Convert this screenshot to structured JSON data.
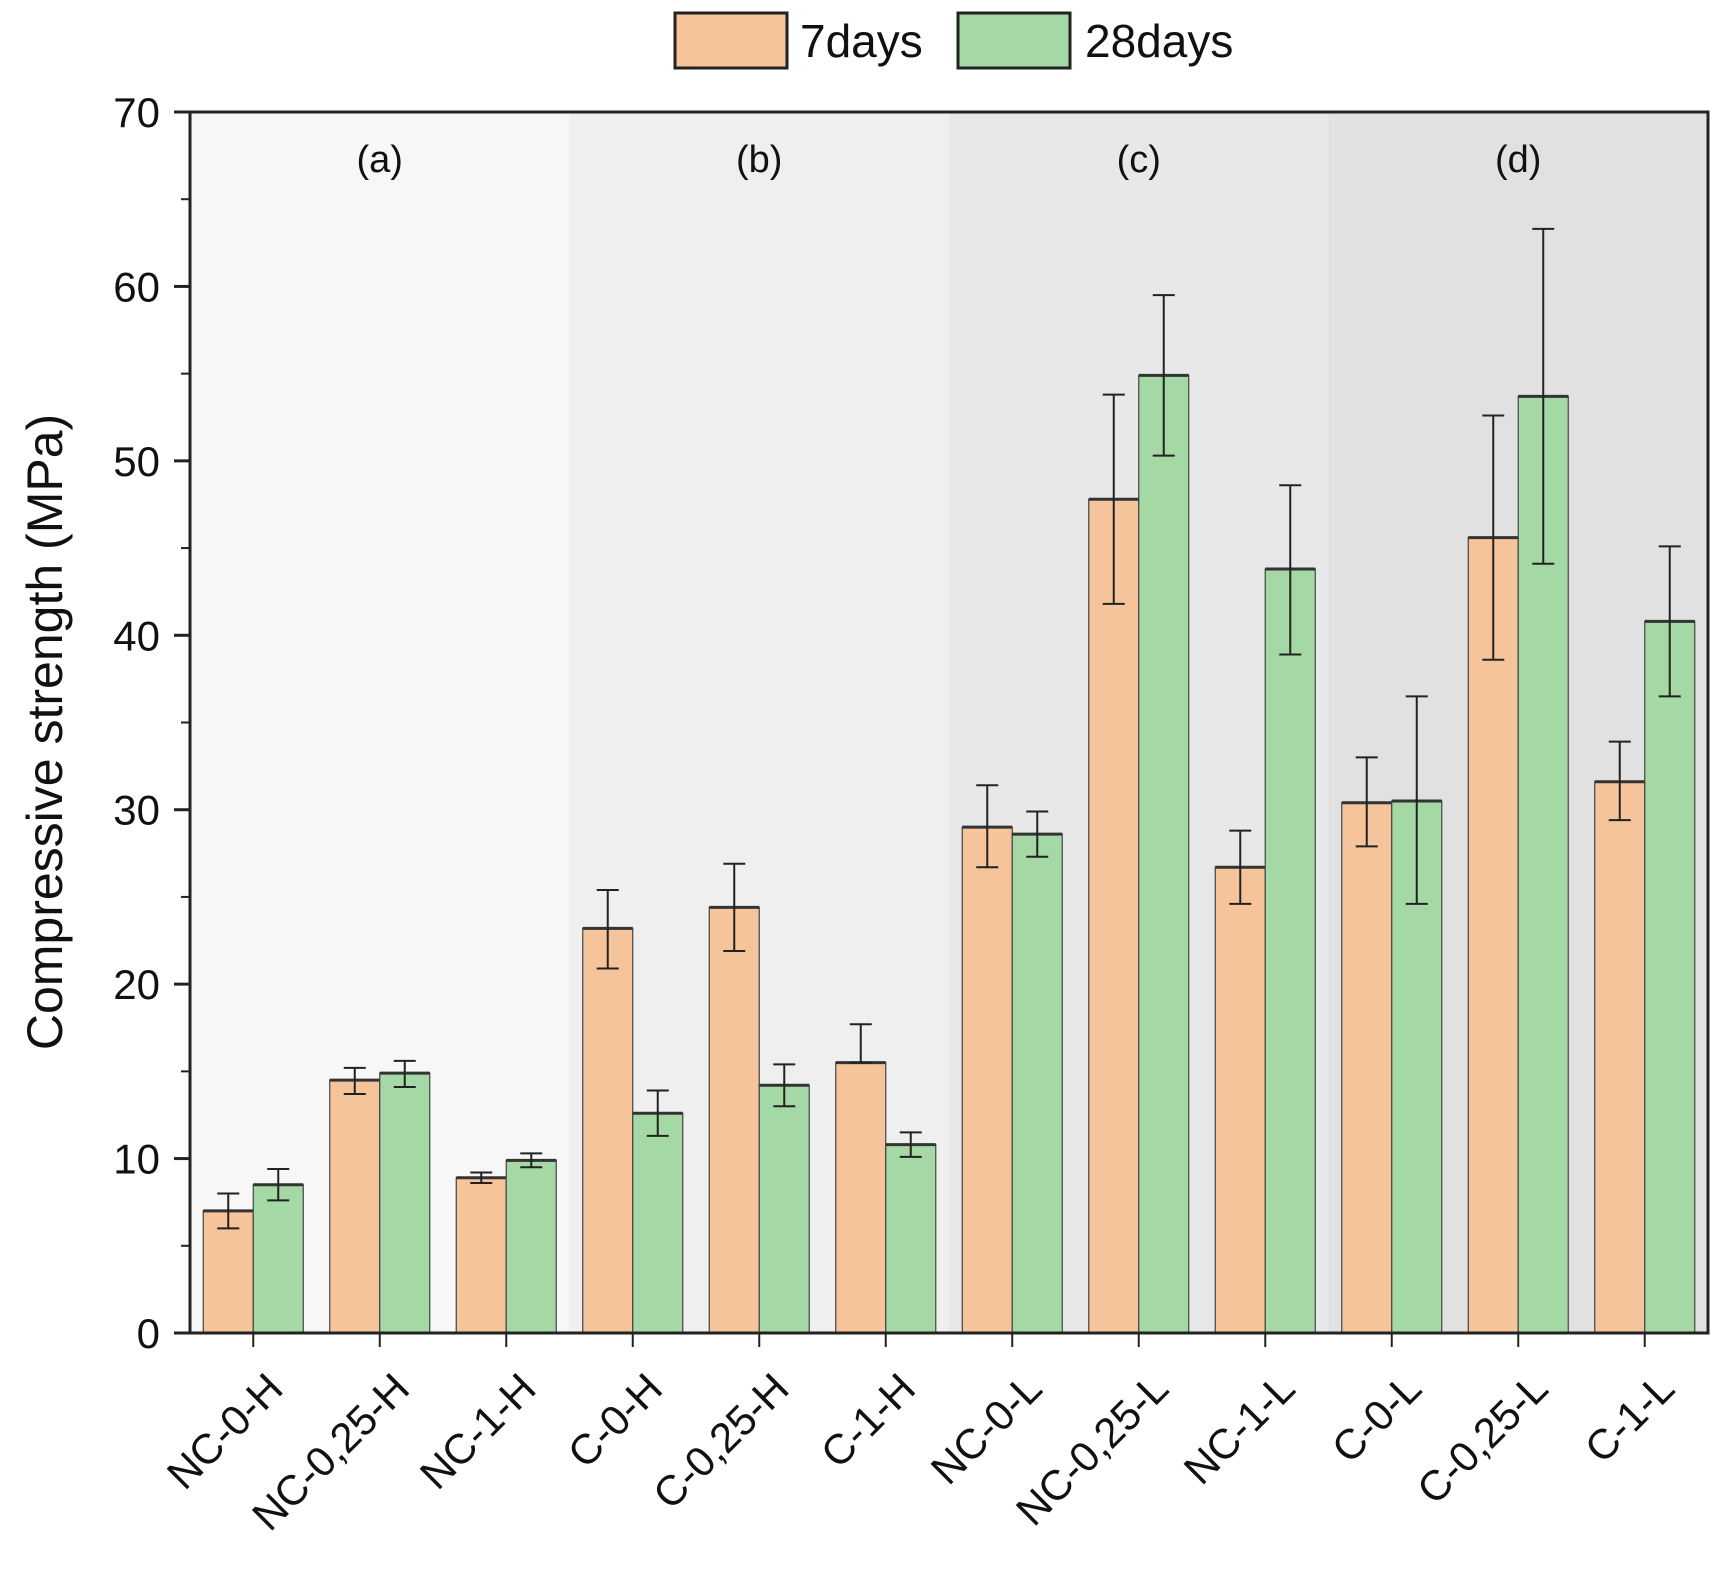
{
  "chart_data": {
    "type": "bar",
    "title": "",
    "xlabel": "",
    "ylabel": "Compressive strength (MPa)",
    "ylim": [
      0,
      70
    ],
    "y_ticks": [
      0,
      10,
      20,
      30,
      40,
      50,
      60,
      70
    ],
    "grid": false,
    "legend_position": "top-center",
    "categories": [
      "NC-0-H",
      "NC-0,25-H",
      "NC-1-H",
      "C-0-H",
      "C-0,25-H",
      "C-1-H",
      "NC-0-L",
      "NC-0,25-L",
      "NC-1-L",
      "C-0-L",
      "C-0,25-L",
      "C-1-L"
    ],
    "series": [
      {
        "name": "7days",
        "color": "#f5c49a",
        "values": [
          7.0,
          14.5,
          8.9,
          23.2,
          24.4,
          15.5,
          29.0,
          47.8,
          26.7,
          30.4,
          45.6,
          31.6
        ],
        "error_low": [
          6.0,
          13.7,
          8.6,
          20.9,
          21.9,
          15.5,
          26.7,
          41.8,
          24.6,
          27.9,
          38.6,
          29.4
        ],
        "error_high": [
          8.0,
          15.2,
          9.2,
          25.4,
          26.9,
          17.7,
          31.4,
          53.8,
          28.8,
          33.0,
          52.6,
          33.9
        ]
      },
      {
        "name": "28days",
        "color": "#a4d8a4",
        "values": [
          8.5,
          14.9,
          9.9,
          12.6,
          14.2,
          10.8,
          28.6,
          54.9,
          43.8,
          30.5,
          53.7,
          40.8
        ],
        "error_low": [
          7.6,
          14.1,
          9.5,
          11.3,
          13.0,
          10.1,
          27.3,
          50.3,
          38.9,
          24.6,
          44.1,
          36.5
        ],
        "error_high": [
          9.4,
          15.6,
          10.3,
          13.9,
          15.4,
          11.5,
          29.9,
          59.5,
          48.6,
          36.5,
          63.3,
          45.1
        ]
      }
    ],
    "groups": [
      {
        "label": "(a)",
        "categories": [
          "NC-0-H",
          "NC-0,25-H",
          "NC-1-H"
        ],
        "shade": "#f7f7f7"
      },
      {
        "label": "(b)",
        "categories": [
          "C-0-H",
          "C-0,25-H",
          "C-1-H"
        ],
        "shade": "#efefef"
      },
      {
        "label": "(c)",
        "categories": [
          "NC-0-L",
          "NC-0,25-L",
          "NC-1-L"
        ],
        "shade": "#e8e8e8"
      },
      {
        "label": "(d)",
        "categories": [
          "C-0-L",
          "C-0,25-L",
          "C-1-L"
        ],
        "shade": "#e1e1e1"
      }
    ]
  }
}
